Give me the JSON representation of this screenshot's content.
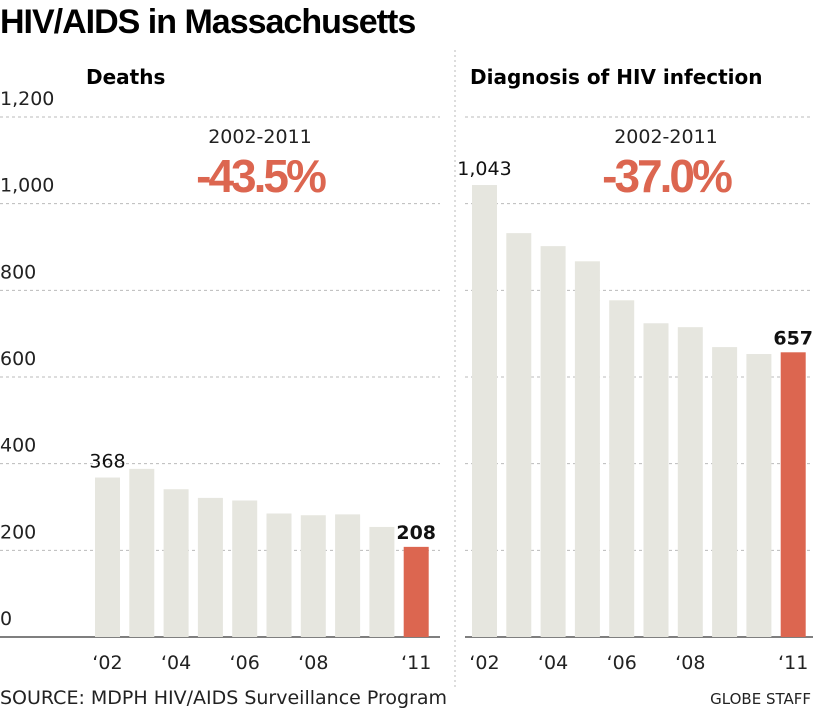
{
  "title": "HIV/AIDS in Massachusetts",
  "source": "SOURCE: MDPH HIV/AIDS Surveillance Program",
  "credit": "GLOBE STAFF",
  "colors": {
    "bar": "#e6e6df",
    "highlight": "#dc6650",
    "grid": "#bbbbbb"
  },
  "chart_data": [
    {
      "type": "bar",
      "title": "Deaths",
      "annotation_range": "2002-2011",
      "annotation_change": "-43.5%",
      "categories": [
        "2002",
        "2003",
        "2004",
        "2005",
        "2006",
        "2007",
        "2008",
        "2009",
        "2010",
        "2011"
      ],
      "tick_labels": [
        "‘02",
        "",
        "‘04",
        "",
        "‘06",
        "",
        "‘08",
        "",
        "",
        "‘11"
      ],
      "values": [
        368,
        388,
        341,
        321,
        315,
        285,
        281,
        283,
        254,
        208
      ],
      "data_labels": {
        "first": "368",
        "last": "208"
      },
      "ylim": [
        0,
        1200
      ],
      "yticks": [
        "0",
        "200",
        "400",
        "600",
        "800",
        "1,000",
        "1,200"
      ],
      "grid": true
    },
    {
      "type": "bar",
      "title": "Diagnosis of HIV infection",
      "annotation_range": "2002-2011",
      "annotation_change": "-37.0%",
      "categories": [
        "2002",
        "2003",
        "2004",
        "2005",
        "2006",
        "2007",
        "2008",
        "2009",
        "2010",
        "2011"
      ],
      "tick_labels": [
        "‘02",
        "",
        "‘04",
        "",
        "‘06",
        "",
        "‘08",
        "",
        "",
        "‘11"
      ],
      "values": [
        1043,
        932,
        902,
        867,
        777,
        724,
        715,
        669,
        653,
        657
      ],
      "data_labels": {
        "first": "1,043",
        "last": "657"
      },
      "ylim": [
        0,
        1200
      ],
      "grid": true
    }
  ]
}
